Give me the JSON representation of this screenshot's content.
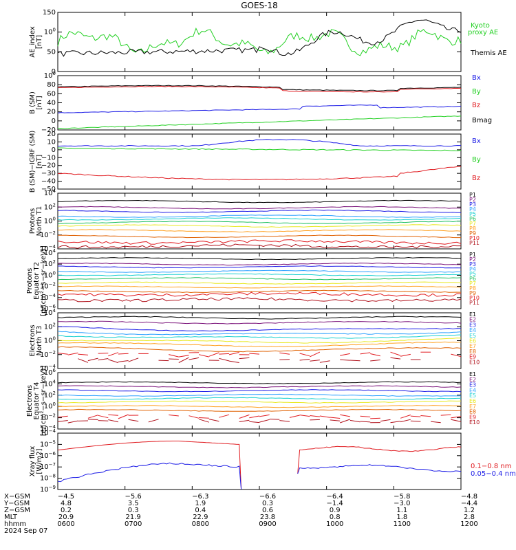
{
  "title": "GOES-18",
  "colors": {
    "black": "#000000",
    "red": "#e0191e",
    "green": "#22d022",
    "blue": "#1a1ae6",
    "p_series": [
      "#000000",
      "#7a127a",
      "#1a1ae6",
      "#2aa0ff",
      "#1ad0d0",
      "#20c060",
      "#8ad020",
      "#e8e820",
      "#ffa020",
      "#e06000",
      "#e0191e",
      "#b0101a"
    ]
  },
  "chart_data": [
    {
      "id": "ae",
      "type": "line",
      "ylabel": "AE_index\n[nT]",
      "ylim": [
        0,
        150
      ],
      "yticks": [
        "0",
        "50",
        "100",
        "150"
      ],
      "series": [
        {
          "name": "Kyoto\nproxy AE",
          "color": "#22d022",
          "label_lines": [
            "Kyoto",
            "proxy AE"
          ]
        },
        {
          "name": "Themis AE",
          "color": "#000000",
          "label_lines": [
            "Themis AE"
          ]
        }
      ]
    },
    {
      "id": "bsm",
      "type": "line",
      "ylabel": "B (SM)\n[nT]",
      "ylim": [
        -20,
        100
      ],
      "yticks": [
        "−20",
        "0",
        "20",
        "40",
        "60",
        "80",
        "100"
      ],
      "series": [
        {
          "name": "Bx",
          "color": "#1a1ae6"
        },
        {
          "name": "By",
          "color": "#22d022"
        },
        {
          "name": "Bz",
          "color": "#e0191e"
        },
        {
          "name": "Bmag",
          "color": "#000000"
        }
      ]
    },
    {
      "id": "bigrf",
      "type": "line",
      "ylabel": "B (SM)−IGRF (SM)\n[nT]",
      "ylim": [
        -50,
        20
      ],
      "yticks": [
        "−50",
        "−40",
        "−30",
        "−20",
        "−10",
        "0",
        "10",
        "20"
      ],
      "series": [
        {
          "name": "Bx",
          "color": "#1a1ae6"
        },
        {
          "name": "By",
          "color": "#22d022"
        },
        {
          "name": "Bz",
          "color": "#e0191e"
        }
      ]
    },
    {
      "id": "pn",
      "type": "line",
      "ylabel": "Protons\nNorth T1",
      "ylim_log": [
        -4,
        4
      ],
      "yticks": [
        "10−4",
        "10−2",
        "100",
        "102",
        "104"
      ],
      "series_labels": [
        "P1",
        "P2",
        "P3",
        "P4",
        "P5",
        "P6",
        "P7",
        "P8",
        "P9",
        "P10",
        "P11"
      ]
    },
    {
      "id": "pe",
      "type": "line",
      "ylabel": "Protons\nEquator T2\n[p/(cm²−s−sr−keV)]",
      "ylim_log": [
        -6,
        4
      ],
      "yticks": [
        "10−6",
        "10−4",
        "10−2",
        "100",
        "102",
        "104"
      ],
      "series_labels": [
        "P1",
        "P2",
        "P3",
        "P4",
        "P5",
        "P6",
        "P7",
        "P8",
        "P9",
        "P10",
        "P11"
      ]
    },
    {
      "id": "en",
      "type": "line",
      "ylabel": "Electrons\nNorth T3",
      "ylim_log": [
        -4,
        4
      ],
      "yticks": [
        "10−4",
        "10−2",
        "100",
        "102",
        "104"
      ],
      "series_labels": [
        "E1",
        "E2",
        "E3",
        "E4",
        "E5",
        "E6",
        "E7",
        "E8",
        "E9",
        "E10"
      ]
    },
    {
      "id": "ee",
      "type": "line",
      "ylabel": "Electrons\nEquator T4\n[e/(cm²−s−sr−keV)]",
      "ylim_log": [
        -4,
        6
      ],
      "yticks": [
        "10−4",
        "10−2",
        "100",
        "102",
        "104",
        "106"
      ],
      "series_labels": [
        "E1",
        "E2",
        "E3",
        "E4",
        "E5",
        "E6",
        "E7",
        "E8",
        "E9",
        "E10"
      ]
    },
    {
      "id": "xray",
      "type": "line",
      "ylabel": "Xray flux\n[W/m2]",
      "ylim_log": [
        -9,
        -4
      ],
      "yticks": [
        "10−9",
        "10−8",
        "10−7",
        "10−6",
        "10−5",
        "10−4"
      ],
      "series": [
        {
          "name": "0.1−0.8 nm",
          "color": "#e0191e"
        },
        {
          "name": "0.05−0.4 nm",
          "color": "#1a1ae6"
        }
      ]
    }
  ],
  "x_axis": {
    "row_labels": [
      "X−GSM",
      "Y−GSM",
      "Z−GSM",
      "MLT",
      "hhmm"
    ],
    "date_label": "2024 Sep 07",
    "columns": [
      {
        "xgsm": "−4.5",
        "ygsm": "4.8",
        "zgsm": "0.2",
        "mlt": "20.9",
        "hhmm": "0600"
      },
      {
        "xgsm": "−5.6",
        "ygsm": "3.5",
        "zgsm": "0.3",
        "mlt": "21.9",
        "hhmm": "0700"
      },
      {
        "xgsm": "−6.3",
        "ygsm": "1.9",
        "zgsm": "0.4",
        "mlt": "22.9",
        "hhmm": "0800"
      },
      {
        "xgsm": "−6.6",
        "ygsm": "0.3",
        "zgsm": "0.6",
        "mlt": "23.8",
        "hhmm": "0900"
      },
      {
        "xgsm": "−6.4",
        "ygsm": "−1.4",
        "zgsm": "0.9",
        "mlt": "0.8",
        "hhmm": "1000"
      },
      {
        "xgsm": "−5.8",
        "ygsm": "−3.0",
        "zgsm": "1.1",
        "mlt": "1.8",
        "hhmm": "1100"
      },
      {
        "xgsm": "−4.8",
        "ygsm": "−4.4",
        "zgsm": "1.2",
        "mlt": "2.8",
        "hhmm": "1200"
      }
    ]
  }
}
